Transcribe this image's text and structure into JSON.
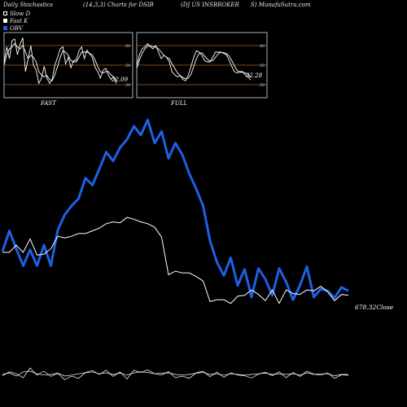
{
  "header": {
    "left": "Daily Stochastics",
    "params": "(14,3,3) Charts for DSIB",
    "name": "(DJ US INSBROKER",
    "site": "S) MunafaSutra.com"
  },
  "legend": [
    {
      "label": "Slow D",
      "color": "#ffffff",
      "swatch": "outline"
    },
    {
      "label": "Fast K",
      "color": "#ffffff",
      "swatch": "filled"
    },
    {
      "label": "OBV",
      "color": "#1f5fe6",
      "swatch": "filled"
    }
  ],
  "colors": {
    "background": "#000000",
    "price_line": "#ffffff",
    "obv_line": "#1f5fe6",
    "stoch_band": "#a0622a",
    "panel_border": "#dddddd"
  },
  "chart_data": [
    {
      "type": "line",
      "panel": "FAST",
      "title": "FAST",
      "yticks": [
        20,
        50,
        80
      ],
      "ylim": [
        0,
        100
      ],
      "value_label": "22.09",
      "series": [
        {
          "name": "Fast K",
          "values": [
            55,
            78,
            60,
            88,
            90,
            66,
            82,
            92,
            40,
            60,
            80,
            50,
            42,
            22,
            30,
            48,
            30,
            22,
            28,
            50,
            62,
            75,
            78,
            52,
            62,
            46,
            57,
            58,
            72,
            78,
            60,
            73,
            67,
            62,
            47,
            40,
            30,
            42,
            45,
            35,
            28,
            32,
            22
          ]
        },
        {
          "name": "Slow D",
          "values": [
            50,
            66,
            75,
            78,
            83,
            78,
            75,
            80,
            70,
            60,
            65,
            62,
            55,
            40,
            35,
            32,
            34,
            28,
            26,
            35,
            48,
            62,
            72,
            70,
            65,
            57,
            55,
            55,
            62,
            70,
            70,
            70,
            68,
            66,
            58,
            48,
            40,
            38,
            40,
            40,
            35,
            32,
            27
          ]
        }
      ]
    },
    {
      "type": "line",
      "panel": "FULL",
      "title": "FULL",
      "yticks": [
        20,
        50,
        80
      ],
      "ylim": [
        0,
        100
      ],
      "value_label": "32.28",
      "series": [
        {
          "name": "Fast K",
          "values": [
            50,
            66,
            75,
            78,
            83,
            78,
            75,
            80,
            70,
            60,
            65,
            62,
            55,
            40,
            35,
            32,
            34,
            28,
            26,
            35,
            48,
            62,
            72,
            70,
            65,
            57,
            55,
            55,
            62,
            70,
            70,
            70,
            68,
            66,
            58,
            48,
            40,
            38,
            40,
            40,
            35,
            32,
            27
          ]
        },
        {
          "name": "Slow D",
          "values": [
            45,
            58,
            68,
            75,
            79,
            80,
            78,
            78,
            75,
            70,
            65,
            62,
            60,
            52,
            45,
            38,
            34,
            31,
            29,
            30,
            36,
            48,
            60,
            68,
            69,
            64,
            59,
            56,
            57,
            62,
            67,
            70,
            69,
            68,
            64,
            57,
            49,
            42,
            39,
            39,
            38,
            36,
            32
          ]
        }
      ]
    },
    {
      "type": "line",
      "panel": "main",
      "price_label": "678.32",
      "price_suffix": "Close",
      "series": [
        {
          "name": "Close",
          "values": [
            100,
            100,
            108,
            100,
            115,
            97,
            98,
            104,
            118,
            116,
            118,
            121,
            121,
            124,
            127,
            132,
            134,
            133,
            139,
            137,
            134,
            132,
            128,
            117,
            75,
            79,
            77,
            77,
            73,
            68,
            45,
            47,
            47,
            43,
            51,
            52,
            58,
            53,
            46,
            58,
            43,
            58,
            54,
            53,
            58,
            57,
            62,
            56,
            46,
            53,
            52
          ]
        },
        {
          "name": "OBV",
          "values": [
            101,
            124,
            104,
            85,
            103,
            85,
            108,
            85,
            125,
            142,
            152,
            160,
            183,
            175,
            193,
            212,
            202,
            217,
            226,
            241,
            231,
            248,
            222,
            235,
            205,
            222,
            209,
            188,
            171,
            152,
            113,
            89,
            74,
            94,
            63,
            81,
            50,
            82,
            70,
            52,
            82,
            67,
            47,
            63,
            84,
            50,
            59,
            57,
            49,
            61,
            57
          ]
        }
      ]
    },
    {
      "type": "line",
      "panel": "bottom",
      "series": [
        {
          "name": "Slow D",
          "values": [
            46,
            58,
            52,
            40,
            70,
            48,
            60,
            44,
            53,
            34,
            45,
            38,
            56,
            62,
            50,
            63,
            44,
            58,
            36,
            63,
            56,
            64,
            52,
            48,
            59,
            40,
            45,
            38,
            55,
            60,
            43,
            57,
            41,
            55,
            48,
            46,
            39,
            51,
            57,
            46,
            58,
            40,
            56,
            44,
            60,
            51,
            48,
            55,
            38,
            49,
            47
          ]
        },
        {
          "name": "Fast K",
          "values": [
            50,
            55,
            45,
            58,
            60,
            52,
            48,
            50,
            54,
            45,
            48,
            52,
            55,
            58,
            52,
            55,
            50,
            54,
            48,
            55,
            58,
            56,
            52,
            54,
            55,
            50,
            48,
            50,
            54,
            56,
            50,
            52,
            48,
            52,
            50,
            48,
            50,
            52,
            54,
            50,
            52,
            50,
            52,
            48,
            55,
            50,
            52,
            52,
            46,
            50,
            50
          ]
        }
      ]
    }
  ]
}
